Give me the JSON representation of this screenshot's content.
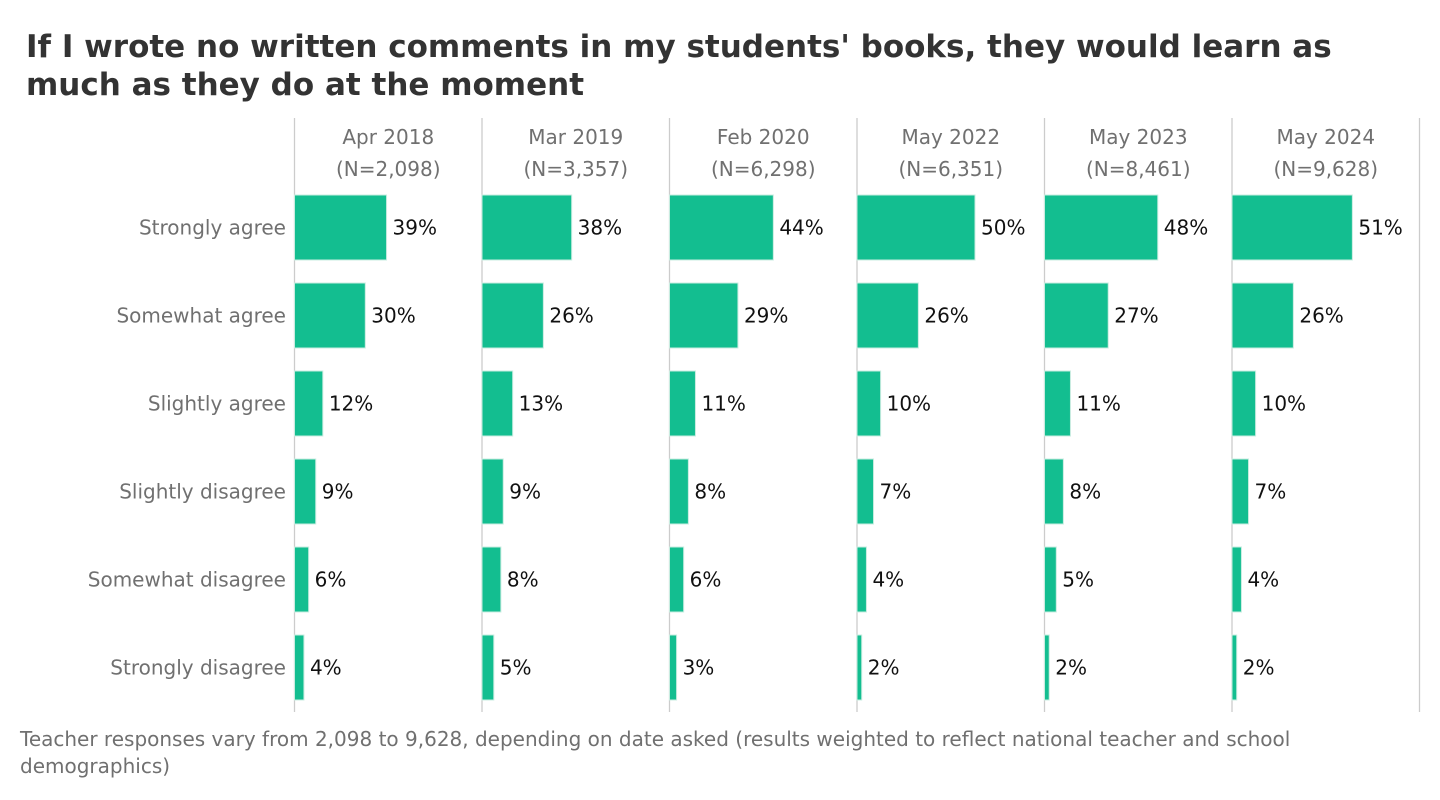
{
  "chart_data": {
    "type": "bar",
    "orientation": "horizontal",
    "title": "If I wrote no written comments in my students' books, they would learn as much as they do at the moment",
    "footnote": "Teacher responses vary from 2,098 to 9,628, depending on date asked (results weighted to reflect national teacher and school demographics)",
    "categories": [
      "Strongly agree",
      "Somewhat agree",
      "Slightly agree",
      "Slightly disagree",
      "Somewhat disagree",
      "Strongly disagree"
    ],
    "unit": "%",
    "xlim": [
      0,
      100
    ],
    "series": [
      {
        "name": "Apr 2018",
        "n_label": "(N=2,098)",
        "values": [
          39,
          30,
          12,
          9,
          6,
          4
        ]
      },
      {
        "name": "Mar 2019",
        "n_label": "(N=3,357)",
        "values": [
          38,
          26,
          13,
          9,
          8,
          5
        ]
      },
      {
        "name": "Feb 2020",
        "n_label": "(N=6,298)",
        "values": [
          44,
          29,
          11,
          8,
          6,
          3
        ]
      },
      {
        "name": "May 2022",
        "n_label": "(N=6,351)",
        "values": [
          50,
          26,
          10,
          7,
          4,
          2
        ]
      },
      {
        "name": "May 2023",
        "n_label": "(N=8,461)",
        "values": [
          48,
          27,
          11,
          8,
          5,
          2
        ]
      },
      {
        "name": "May 2024",
        "n_label": "(N=9,628)",
        "values": [
          51,
          26,
          10,
          7,
          4,
          2
        ]
      }
    ],
    "colors": {
      "bar": "#13be90",
      "bar_stroke": "#c8ece0"
    }
  }
}
